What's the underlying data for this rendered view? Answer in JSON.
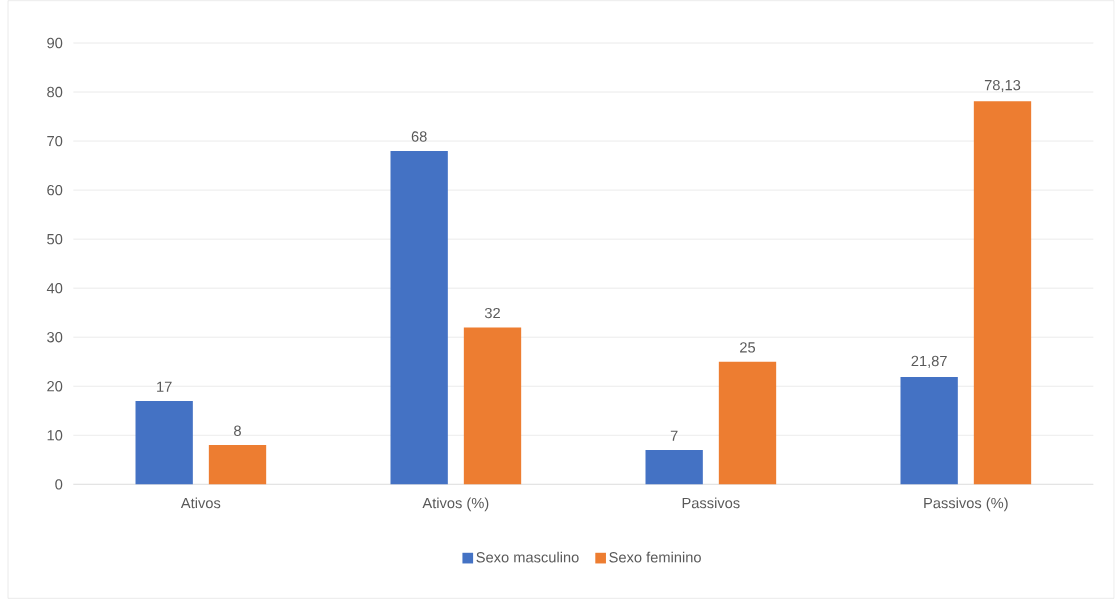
{
  "chart_data": {
    "type": "bar",
    "categories": [
      "Ativos",
      "Ativos (%)",
      "Passivos",
      "Passivos (%)"
    ],
    "series": [
      {
        "name": "Sexo masculino",
        "color": "#4472c4",
        "values": [
          17,
          68,
          7,
          21.87
        ],
        "value_labels": [
          "17",
          "68",
          "7",
          "21,87"
        ]
      },
      {
        "name": "Sexo feminino",
        "color": "#ed7d31",
        "values": [
          8,
          32,
          25,
          78.13
        ],
        "value_labels": [
          "8",
          "32",
          "25",
          "78,13"
        ]
      }
    ],
    "ylim": [
      0,
      90
    ],
    "yticks": [
      0,
      10,
      20,
      30,
      40,
      50,
      60,
      70,
      80,
      90
    ],
    "grid": "y",
    "legend": "bottom"
  }
}
